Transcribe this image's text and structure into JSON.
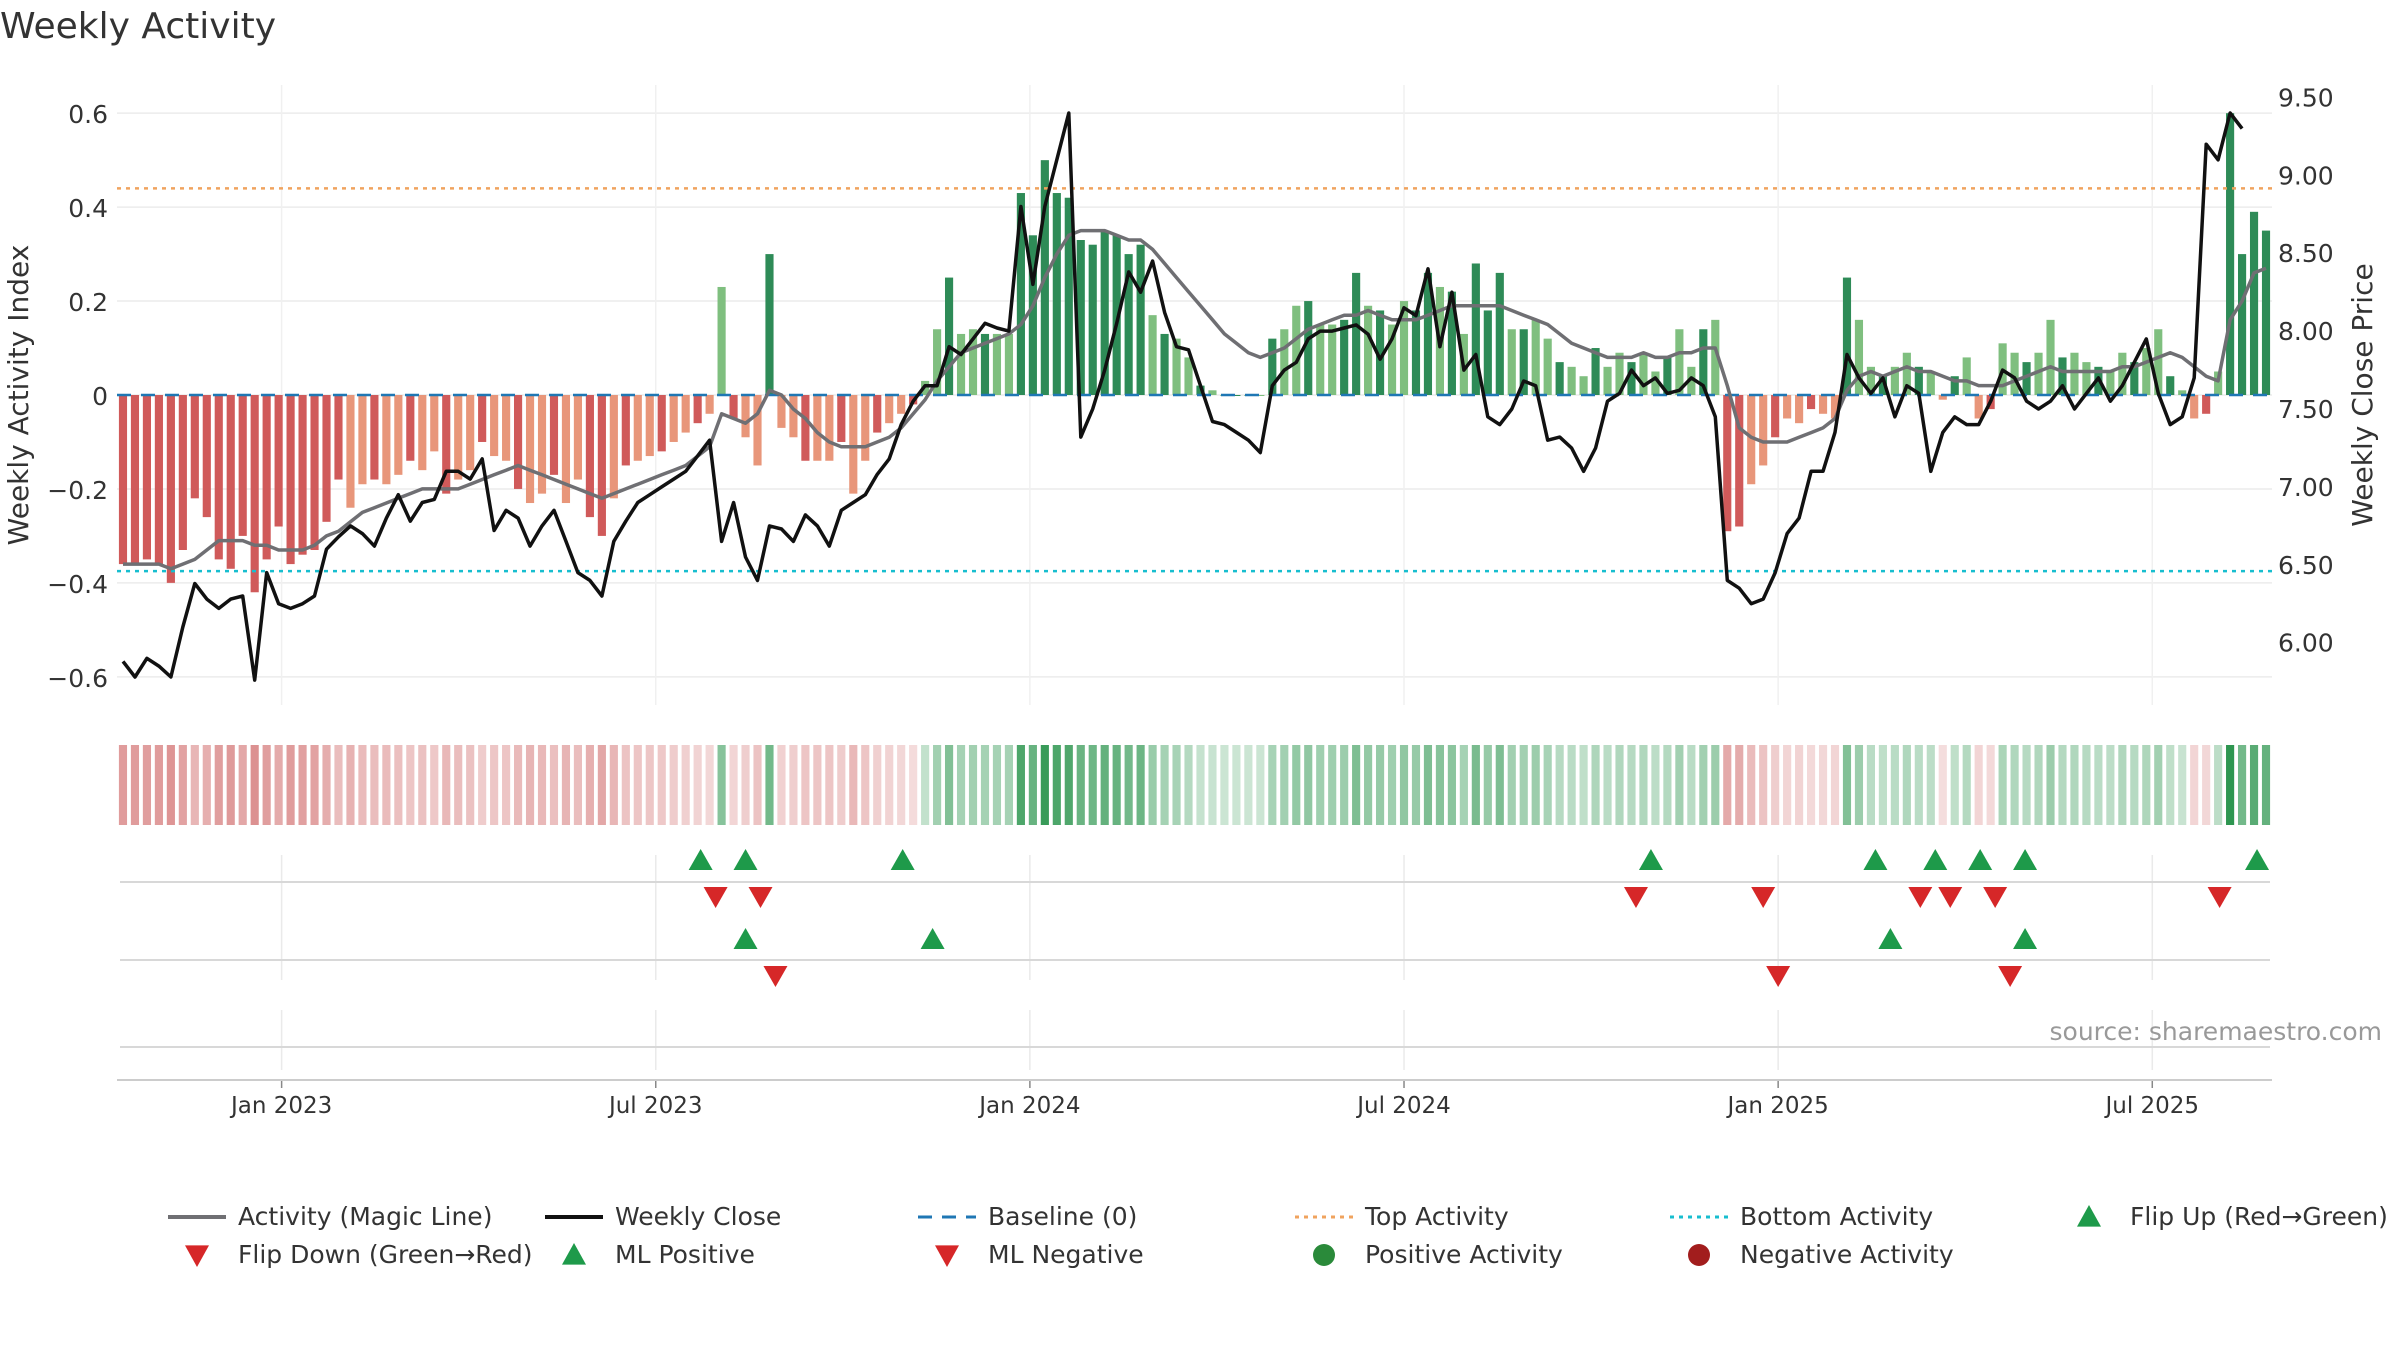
{
  "chart_data": {
    "type": "bar",
    "title": "Weekly Activity",
    "ylabel": "Weekly Activity Index",
    "y2label": "Weekly Close Price",
    "ylim": [
      -0.66,
      0.66
    ],
    "y2lim": [
      5.6,
      9.58
    ],
    "yticks": [
      -0.6,
      -0.4,
      -0.2,
      0,
      0.2,
      0.4,
      0.6
    ],
    "yticklabels": [
      "−0.6",
      "−0.4",
      "−0.2",
      "0",
      "0.2",
      "0.4",
      "0.6"
    ],
    "y2ticks": [
      6.0,
      6.5,
      7.0,
      7.5,
      8.0,
      8.5,
      9.0,
      9.5
    ],
    "y2ticklabels": [
      "6.00",
      "6.50",
      "7.00",
      "7.50",
      "8.00",
      "8.50",
      "9.00",
      "9.50"
    ],
    "x_range": [
      2022.78,
      2025.66
    ],
    "xticks": [
      2023.0,
      2023.5,
      2024.0,
      2024.5,
      2025.0,
      2025.5
    ],
    "xticklabels": [
      "Jan 2023",
      "Jul 2023",
      "Jan 2024",
      "Jul 2024",
      "Jan 2025",
      "Jul 2025"
    ],
    "top_activity": 0.44,
    "bottom_activity": -0.375,
    "baseline": 0,
    "source": "source: sharemaestro.com",
    "legend": {
      "placement": "bottom",
      "items": [
        {
          "label": "Activity (Magic Line)",
          "kind": "line",
          "color": "#6f6f73"
        },
        {
          "label": "Weekly Close",
          "kind": "line",
          "color": "#111111"
        },
        {
          "label": "Baseline (0)",
          "kind": "dash",
          "color": "#1f77b4"
        },
        {
          "label": "Top Activity",
          "kind": "dot",
          "color": "#f0a35e"
        },
        {
          "label": "Bottom Activity",
          "kind": "dot",
          "color": "#17becf"
        },
        {
          "label": "Flip Up (Red→Green)",
          "kind": "tri-up",
          "color": "#1e9a4a"
        },
        {
          "label": "Flip Down (Green→Red)",
          "kind": "tri-down",
          "color": "#d62728"
        },
        {
          "label": "ML Positive",
          "kind": "tri-up",
          "color": "#1e9a4a"
        },
        {
          "label": "ML Negative",
          "kind": "tri-down",
          "color": "#d62728"
        },
        {
          "label": "Positive Activity",
          "kind": "circle",
          "color": "#2a8a3a"
        },
        {
          "label": "Negative Activity",
          "kind": "circle",
          "color": "#a21d1d"
        }
      ]
    },
    "colors": {
      "pos_dark": "#2e8b57",
      "pos_light": "#7fbf7f",
      "neg_dark": "#d05a5a",
      "neg_light": "#e8967a",
      "magic": "#6f6f73",
      "close": "#111111",
      "baseline": "#1f77b4",
      "top": "#f0a35e",
      "bottom": "#17becf",
      "up": "#1e9a4a",
      "down": "#d62728"
    },
    "series": [
      {
        "name": "Activity",
        "values": [
          -0.36,
          -0.36,
          -0.35,
          -0.36,
          -0.4,
          -0.33,
          -0.22,
          -0.26,
          -0.35,
          -0.37,
          -0.3,
          -0.42,
          -0.35,
          -0.28,
          -0.36,
          -0.34,
          -0.33,
          -0.27,
          -0.18,
          -0.24,
          -0.19,
          -0.18,
          -0.19,
          -0.17,
          -0.14,
          -0.16,
          -0.12,
          -0.21,
          -0.18,
          -0.16,
          -0.1,
          -0.13,
          -0.14,
          -0.2,
          -0.23,
          -0.21,
          -0.17,
          -0.23,
          -0.18,
          -0.26,
          -0.3,
          -0.22,
          -0.15,
          -0.14,
          -0.13,
          -0.12,
          -0.1,
          -0.08,
          -0.06,
          -0.04,
          0.23,
          -0.05,
          -0.09,
          -0.15,
          0.3,
          -0.07,
          -0.09,
          -0.14,
          -0.14,
          -0.14,
          -0.1,
          -0.21,
          -0.14,
          -0.08,
          -0.06,
          -0.04,
          -0.02,
          0.03,
          0.14,
          0.25,
          0.13,
          0.14,
          0.13,
          0.13,
          0.13,
          0.43,
          0.34,
          0.5,
          0.43,
          0.42,
          0.33,
          0.32,
          0.35,
          0.34,
          0.3,
          0.32,
          0.17,
          0.13,
          0.12,
          0.08,
          0.02,
          0.01,
          0.0,
          0.0,
          0.0,
          0.0,
          0.12,
          0.14,
          0.19,
          0.2,
          0.15,
          0.15,
          0.16,
          0.26,
          0.19,
          0.18,
          0.15,
          0.2,
          0.18,
          0.26,
          0.23,
          0.22,
          0.13,
          0.28,
          0.18,
          0.26,
          0.14,
          0.14,
          0.16,
          0.12,
          0.07,
          0.06,
          0.04,
          0.1,
          0.06,
          0.09,
          0.07,
          0.09,
          0.05,
          0.08,
          0.14,
          0.06,
          0.14,
          0.16,
          -0.29,
          -0.28,
          -0.19,
          -0.15,
          -0.09,
          -0.05,
          -0.06,
          -0.03,
          -0.04,
          -0.05,
          0.25,
          0.16,
          0.06,
          0.04,
          0.06,
          0.09,
          0.06,
          0.05,
          -0.01,
          0.04,
          0.08,
          -0.05,
          -0.03,
          0.11,
          0.09,
          0.07,
          0.09,
          0.16,
          0.08,
          0.09,
          0.07,
          0.06,
          0.05,
          0.09,
          0.07,
          0.1,
          0.14,
          0.04,
          0.01,
          -0.05,
          -0.04,
          0.05,
          0.6,
          0.3,
          0.39,
          0.35
        ]
      },
      {
        "name": "Activity (Magic Line)",
        "values": [
          -0.36,
          -0.36,
          -0.36,
          -0.36,
          -0.37,
          -0.36,
          -0.35,
          -0.33,
          -0.31,
          -0.31,
          -0.31,
          -0.32,
          -0.32,
          -0.33,
          -0.33,
          -0.33,
          -0.32,
          -0.3,
          -0.29,
          -0.27,
          -0.25,
          -0.24,
          -0.23,
          -0.22,
          -0.21,
          -0.2,
          -0.2,
          -0.2,
          -0.2,
          -0.19,
          -0.18,
          -0.17,
          -0.16,
          -0.15,
          -0.16,
          -0.17,
          -0.18,
          -0.19,
          -0.2,
          -0.21,
          -0.22,
          -0.21,
          -0.2,
          -0.19,
          -0.18,
          -0.17,
          -0.16,
          -0.15,
          -0.13,
          -0.11,
          -0.04,
          -0.05,
          -0.06,
          -0.04,
          0.01,
          0.0,
          -0.03,
          -0.05,
          -0.08,
          -0.1,
          -0.11,
          -0.11,
          -0.11,
          -0.1,
          -0.09,
          -0.07,
          -0.04,
          -0.01,
          0.03,
          0.06,
          0.09,
          0.1,
          0.11,
          0.12,
          0.13,
          0.15,
          0.19,
          0.25,
          0.3,
          0.34,
          0.35,
          0.35,
          0.35,
          0.34,
          0.33,
          0.33,
          0.31,
          0.28,
          0.25,
          0.22,
          0.19,
          0.16,
          0.13,
          0.11,
          0.09,
          0.08,
          0.09,
          0.1,
          0.12,
          0.14,
          0.15,
          0.16,
          0.17,
          0.17,
          0.18,
          0.17,
          0.16,
          0.16,
          0.16,
          0.17,
          0.18,
          0.19,
          0.19,
          0.19,
          0.19,
          0.19,
          0.18,
          0.17,
          0.16,
          0.15,
          0.13,
          0.11,
          0.1,
          0.09,
          0.08,
          0.08,
          0.08,
          0.09,
          0.08,
          0.08,
          0.09,
          0.09,
          0.1,
          0.1,
          0.02,
          -0.07,
          -0.09,
          -0.1,
          -0.1,
          -0.1,
          -0.09,
          -0.08,
          -0.07,
          -0.05,
          0.01,
          0.04,
          0.05,
          0.04,
          0.05,
          0.06,
          0.05,
          0.05,
          0.04,
          0.03,
          0.03,
          0.02,
          0.02,
          0.02,
          0.03,
          0.04,
          0.05,
          0.06,
          0.05,
          0.05,
          0.05,
          0.05,
          0.05,
          0.06,
          0.06,
          0.07,
          0.08,
          0.09,
          0.08,
          0.06,
          0.04,
          0.03,
          0.16,
          0.2,
          0.26,
          0.27
        ]
      },
      {
        "name": "Weekly Close",
        "values": [
          5.88,
          5.78,
          5.9,
          5.85,
          5.78,
          6.1,
          6.38,
          6.28,
          6.22,
          6.28,
          6.3,
          5.76,
          6.45,
          6.25,
          6.22,
          6.25,
          6.3,
          6.6,
          6.68,
          6.75,
          6.7,
          6.62,
          6.8,
          6.95,
          6.78,
          6.9,
          6.92,
          7.1,
          7.1,
          7.05,
          7.18,
          6.72,
          6.85,
          6.8,
          6.62,
          6.75,
          6.85,
          6.65,
          6.45,
          6.4,
          6.3,
          6.65,
          6.78,
          6.9,
          6.95,
          7.0,
          7.05,
          7.1,
          7.2,
          7.3,
          6.65,
          6.9,
          6.55,
          6.4,
          6.75,
          6.73,
          6.65,
          6.82,
          6.75,
          6.62,
          6.85,
          6.9,
          6.95,
          7.08,
          7.18,
          7.4,
          7.55,
          7.65,
          7.65,
          7.9,
          7.85,
          7.95,
          8.05,
          8.02,
          8.0,
          8.8,
          8.3,
          8.8,
          9.1,
          9.4,
          7.32,
          7.5,
          7.75,
          8.05,
          8.38,
          8.25,
          8.45,
          8.12,
          7.9,
          7.88,
          7.65,
          7.42,
          7.4,
          7.35,
          7.3,
          7.22,
          7.65,
          7.75,
          7.8,
          7.95,
          8.0,
          8.0,
          8.02,
          8.04,
          7.98,
          7.82,
          7.95,
          8.15,
          8.1,
          8.4,
          7.9,
          8.25,
          7.75,
          7.85,
          7.45,
          7.4,
          7.5,
          7.68,
          7.65,
          7.3,
          7.32,
          7.25,
          7.1,
          7.25,
          7.55,
          7.6,
          7.75,
          7.65,
          7.7,
          7.6,
          7.62,
          7.7,
          7.65,
          7.45,
          6.4,
          6.35,
          6.25,
          6.28,
          6.45,
          6.7,
          6.8,
          7.1,
          7.1,
          7.35,
          7.85,
          7.7,
          7.6,
          7.7,
          7.45,
          7.65,
          7.6,
          7.1,
          7.35,
          7.45,
          7.4,
          7.4,
          7.55,
          7.75,
          7.7,
          7.55,
          7.5,
          7.55,
          7.65,
          7.5,
          7.6,
          7.7,
          7.55,
          7.65,
          7.8,
          7.95,
          7.6,
          7.4,
          7.45,
          7.7,
          9.2,
          9.1,
          9.4,
          9.3
        ]
      }
    ],
    "events": {
      "flip_up": [
        2023.56,
        2023.62,
        2023.83,
        2024.83,
        2025.13,
        2025.21,
        2025.27,
        2025.33,
        2025.64
      ],
      "flip_down": [
        2023.58,
        2023.64,
        2024.81,
        2024.98,
        2025.19,
        2025.23,
        2025.29,
        2025.59
      ],
      "ml_positive": [
        2023.62,
        2023.87,
        2025.15,
        2025.33
      ],
      "ml_negative": [
        2023.66,
        2025.0,
        2025.31
      ]
    }
  }
}
